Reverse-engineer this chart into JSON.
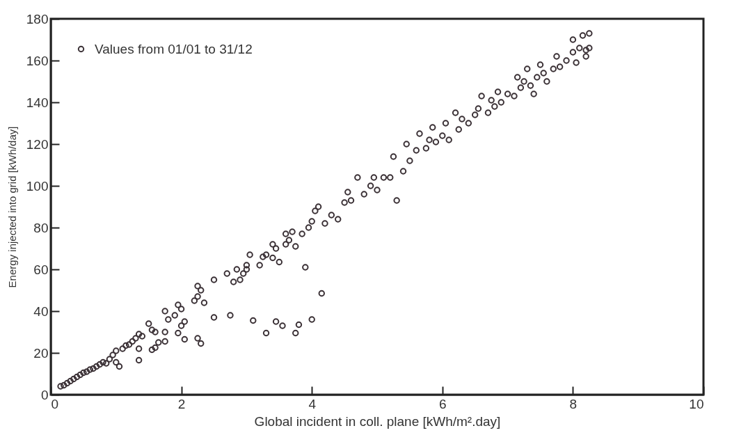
{
  "chart_data": {
    "type": "scatter",
    "xlabel": "Global incident in coll. plane [kWh/m².day]",
    "ylabel": "Energy injected into grid [kWh/day]",
    "xlim": [
      0,
      10
    ],
    "ylim": [
      0,
      180
    ],
    "xticks": [
      0,
      2,
      4,
      6,
      8,
      10
    ],
    "yticks": [
      0,
      20,
      40,
      60,
      80,
      100,
      120,
      140,
      160,
      180
    ],
    "grid": false,
    "legend": "top left",
    "marker": "circle",
    "x": [
      0.15,
      0.2,
      0.25,
      0.3,
      0.35,
      0.4,
      0.45,
      0.5,
      0.55,
      0.6,
      0.65,
      0.7,
      0.75,
      0.8,
      0.85,
      0.9,
      0.95,
      1.0,
      1.0,
      1.05,
      1.1,
      1.15,
      1.2,
      1.25,
      1.3,
      1.35,
      1.4,
      1.35,
      1.35,
      1.5,
      1.55,
      1.6,
      1.55,
      1.6,
      1.65,
      1.75,
      1.8,
      1.75,
      1.75,
      1.9,
      1.95,
      2.0,
      2.0,
      1.95,
      2.05,
      2.05,
      2.2,
      2.25,
      2.3,
      2.25,
      2.35,
      2.3,
      2.25,
      2.5,
      2.5,
      2.7,
      2.75,
      2.8,
      2.85,
      2.9,
      2.95,
      3.0,
      3.05,
      3.0,
      3.1,
      3.2,
      3.25,
      3.3,
      3.3,
      3.4,
      3.4,
      3.45,
      3.45,
      3.5,
      3.55,
      3.6,
      3.6,
      3.65,
      3.7,
      3.75,
      3.75,
      3.8,
      3.85,
      3.9,
      3.95,
      4.0,
      4.0,
      4.05,
      4.1,
      4.15,
      4.2,
      4.3,
      4.4,
      4.5,
      4.55,
      4.6,
      4.7,
      4.8,
      4.9,
      4.95,
      5.0,
      5.1,
      5.2,
      5.25,
      5.3,
      5.4,
      5.45,
      5.5,
      5.6,
      5.65,
      5.75,
      5.8,
      5.85,
      5.9,
      6.0,
      6.05,
      6.1,
      6.2,
      6.25,
      6.3,
      6.4,
      6.5,
      6.55,
      6.6,
      6.7,
      6.75,
      6.8,
      6.85,
      6.9,
      7.0,
      7.1,
      7.15,
      7.2,
      7.25,
      7.3,
      7.35,
      7.4,
      7.45,
      7.5,
      7.55,
      7.6,
      7.7,
      7.75,
      7.8,
      7.9,
      8.0,
      8.0,
      8.05,
      8.1,
      8.15,
      8.2,
      8.2,
      8.25,
      8.25
    ],
    "series": [
      {
        "name": "Values from 01/01 to 31/12",
        "color": "#3a3035",
        "values": [
          4,
          4.5,
          5.5,
          6.5,
          7.5,
          8.5,
          9.5,
          10.5,
          11,
          12,
          12.5,
          13.5,
          14.5,
          15.5,
          15,
          17,
          19,
          21,
          15.5,
          13.5,
          22,
          23.5,
          24,
          25.5,
          27,
          29,
          28,
          22,
          16.5,
          34,
          31,
          30,
          21.5,
          22.5,
          25,
          40,
          36,
          30,
          25.5,
          38,
          43,
          41,
          33,
          29.5,
          26.5,
          35,
          45,
          52,
          50,
          47,
          44,
          24.5,
          27,
          55,
          37,
          58,
          38,
          54,
          60,
          55,
          58,
          62,
          67,
          60,
          35.5,
          62,
          66,
          67,
          29.5,
          72,
          65.5,
          70,
          35,
          63.5,
          33,
          77,
          72,
          74,
          78,
          71,
          29.5,
          33.5,
          77,
          61,
          80,
          36,
          83,
          88,
          90,
          48.5,
          82,
          86,
          84,
          92,
          97,
          93,
          104,
          96,
          100,
          104,
          98,
          104,
          104,
          114,
          93,
          107,
          120,
          112,
          117,
          125,
          118,
          122,
          128,
          121,
          124,
          130,
          122,
          135,
          127,
          132,
          130,
          134,
          137,
          143,
          135,
          141,
          138,
          145,
          140,
          144,
          143,
          152,
          147,
          150,
          156,
          148,
          144,
          152,
          158,
          154,
          150,
          156,
          162,
          157,
          160,
          170,
          164,
          159,
          166,
          172,
          162,
          165,
          173,
          166
        ]
      }
    ]
  }
}
